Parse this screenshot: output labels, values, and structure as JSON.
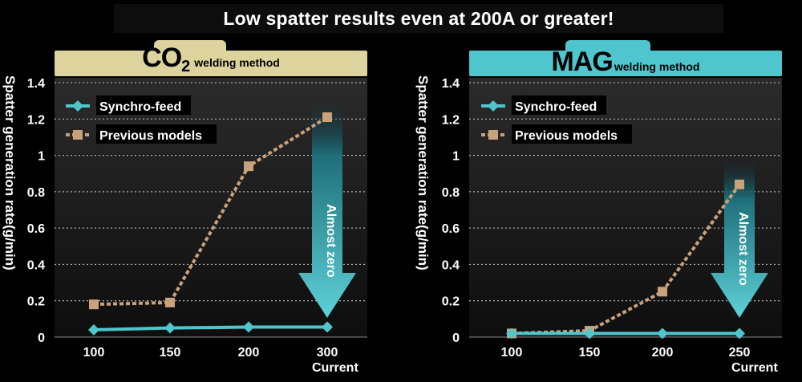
{
  "headline": "Low spatter results even at 200A or greater!",
  "charts": [
    {
      "banner_main": "CO",
      "banner_sub": "2",
      "banner_method": "welding method",
      "banner_color": "#dcd49c",
      "ylabel": "Spatter generation rate(g/min)",
      "xlabel": "Current",
      "arrow_label": "Almost zero"
    },
    {
      "banner_main": "MAG",
      "banner_sub": "",
      "banner_method": "welding method",
      "banner_color": "#4fc6cd",
      "ylabel": "Spatter generation rate(g/min)",
      "xlabel": "Current",
      "arrow_label": "Almost zero"
    }
  ],
  "chart_data": [
    {
      "type": "line",
      "title": "CO2 welding method",
      "xlabel": "Current",
      "ylabel": "Spatter generation rate(g/min)",
      "categories": [
        "100",
        "150",
        "200",
        "300"
      ],
      "ylim": [
        0,
        1.4
      ],
      "yticks": [
        "0",
        "0.2",
        "0.4",
        "0.6",
        "0.8",
        "1",
        "1.2",
        "1.4"
      ],
      "grid": true,
      "legend": "top-left",
      "series": [
        {
          "name": "Synchro-feed",
          "values": [
            0.04,
            0.05,
            0.055,
            0.055
          ],
          "color": "#4fc6cd"
        },
        {
          "name": "Previous models",
          "values": [
            0.18,
            0.19,
            0.94,
            1.21
          ],
          "color": "#c8a27a"
        }
      ]
    },
    {
      "type": "line",
      "title": "MAG welding method",
      "xlabel": "Current",
      "ylabel": "Spatter generation rate(g/min)",
      "categories": [
        "100",
        "150",
        "200",
        "250"
      ],
      "ylim": [
        0,
        1.4
      ],
      "yticks": [
        "0",
        "0.2",
        "0.4",
        "0.6",
        "0.8",
        "1",
        "1.2",
        "1.4"
      ],
      "grid": true,
      "legend": "top-left",
      "series": [
        {
          "name": "Synchro-feed",
          "values": [
            0.02,
            0.02,
            0.02,
            0.02
          ],
          "color": "#4fc6cd"
        },
        {
          "name": "Previous models",
          "values": [
            0.02,
            0.035,
            0.25,
            0.84
          ],
          "color": "#c8a27a"
        }
      ]
    }
  ]
}
